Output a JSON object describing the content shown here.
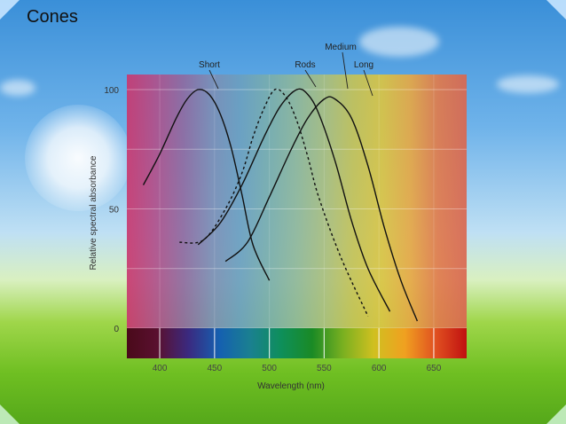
{
  "slide": {
    "title": "Cones"
  },
  "chart_data": {
    "type": "line",
    "title": "",
    "xlabel": "Wavelength (nm)",
    "ylabel": "Relative spectral absorbance",
    "xlim": [
      370,
      680
    ],
    "ylim": [
      0,
      105
    ],
    "x_ticks": [
      400,
      450,
      500,
      550,
      600,
      650
    ],
    "y_ticks": [
      0,
      50,
      100
    ],
    "grid": true,
    "series": [
      {
        "name": "Short",
        "style": "solid",
        "x": [
          385,
          400,
          415,
          425,
          435,
          445,
          455,
          465,
          475,
          485,
          500
        ],
        "y": [
          60,
          73,
          88,
          96,
          100,
          98,
          90,
          76,
          56,
          35,
          20
        ]
      },
      {
        "name": "Rods",
        "style": "dashed",
        "x": [
          418,
          440,
          460,
          475,
          485,
          495,
          505,
          515,
          525,
          535,
          545,
          565,
          590
        ],
        "y": [
          36,
          37,
          50,
          65,
          80,
          92,
          100,
          97,
          87,
          72,
          55,
          30,
          5
        ]
      },
      {
        "name": "Medium",
        "style": "solid",
        "x": [
          435,
          455,
          475,
          495,
          510,
          525,
          535,
          545,
          560,
          575,
          590,
          610
        ],
        "y": [
          35,
          44,
          60,
          80,
          93,
          100,
          98,
          90,
          70,
          45,
          25,
          7
        ]
      },
      {
        "name": "Long",
        "style": "solid",
        "x": [
          460,
          480,
          500,
          520,
          535,
          550,
          560,
          575,
          590,
          605,
          620,
          635
        ],
        "y": [
          28,
          36,
          55,
          75,
          88,
          96,
          96,
          88,
          68,
          42,
          20,
          3
        ]
      }
    ],
    "label_positions_note": "",
    "spectrum_colors": [
      "#c9386f",
      "#b04f8a",
      "#8e6aa0",
      "#7b8db5",
      "#6a9fc0",
      "#78adad",
      "#8fb79a",
      "#a9be7e",
      "#c4c256",
      "#d9c443",
      "#e5a845",
      "#e07a4c",
      "#d96750"
    ],
    "spectrum_bar_colors": [
      "#4a0a1a",
      "#5a1030",
      "#3a2a80",
      "#1560b0",
      "#1a8090",
      "#0e8f5a",
      "#1a8a25",
      "#7ab020",
      "#d0c020",
      "#f0a020",
      "#e05020",
      "#c01010"
    ]
  }
}
